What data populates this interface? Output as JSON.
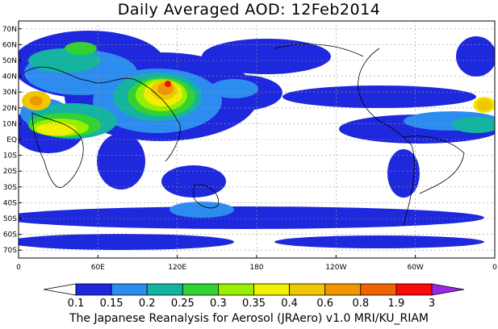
{
  "title": "Daily Averaged AOD: 12Feb2014",
  "footer": "The Japanese Reanalysis for Aerosol (JRAero) v1.0 MRI/KU_RIAM",
  "axes": {
    "lat_labels": [
      "70N",
      "60N",
      "50N",
      "40N",
      "30N",
      "20N",
      "10N",
      "EQ",
      "10S",
      "20S",
      "30S",
      "40S",
      "50S",
      "60S",
      "70S"
    ],
    "lat_values": [
      70,
      60,
      50,
      40,
      30,
      20,
      10,
      0,
      -10,
      -20,
      -30,
      -40,
      -50,
      -60,
      -70
    ],
    "lon_labels": [
      "0",
      "60E",
      "120E",
      "180",
      "120W",
      "60W",
      "0"
    ],
    "lon_values": [
      0,
      60,
      120,
      180,
      240,
      300,
      360
    ],
    "lat_range": [
      -75,
      75
    ],
    "lon_range": [
      0,
      360
    ],
    "grid": true
  },
  "colorbar": {
    "labels": [
      "0.1",
      "0.15",
      "0.2",
      "0.25",
      "0.3",
      "0.35",
      "0.4",
      "0.6",
      "0.8",
      "1.9",
      "3"
    ],
    "colors": [
      "#ffffff",
      "#1e28dc",
      "#2d8cf0",
      "#14b4a0",
      "#32d232",
      "#96f000",
      "#f0f000",
      "#f0c800",
      "#f09600",
      "#f06400",
      "#fa0a0a",
      "#9a28e6"
    ]
  }
}
